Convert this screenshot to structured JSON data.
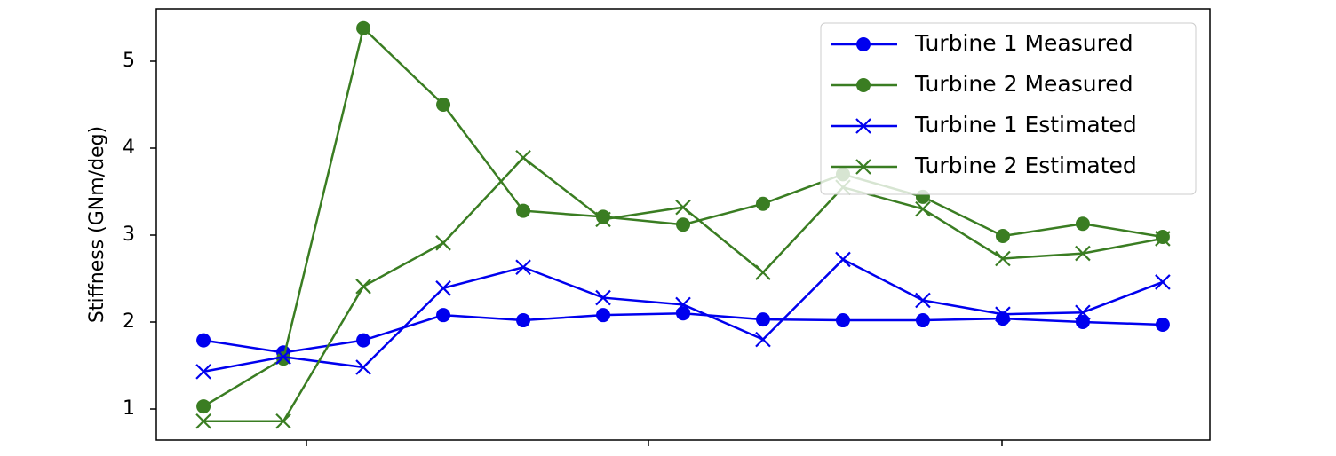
{
  "chart_data": {
    "type": "line",
    "y_label": "Stiffness (GNm/deg)",
    "categories": [
      null,
      null,
      null,
      null,
      null,
      null,
      null,
      null,
      null,
      null,
      null,
      null,
      null
    ],
    "series": [
      {
        "name": "Turbine 1 Measured",
        "color": "#0000ee",
        "marker": "o",
        "values": [
          1.79,
          1.65,
          1.79,
          2.08,
          2.02,
          2.08,
          2.1,
          2.03,
          2.02,
          2.02,
          2.04,
          2.0,
          1.97
        ]
      },
      {
        "name": "Turbine 2 Measured",
        "color": "#3a7d22",
        "marker": "o",
        "values": [
          1.03,
          1.58,
          5.38,
          4.5,
          3.28,
          3.21,
          3.12,
          3.36,
          3.7,
          3.44,
          2.99,
          3.13,
          2.98
        ]
      },
      {
        "name": "Turbine 1 Estimated",
        "color": "#0000ee",
        "marker": "x",
        "values": [
          1.43,
          1.6,
          1.48,
          2.39,
          2.63,
          2.28,
          2.2,
          1.8,
          2.72,
          2.25,
          2.09,
          2.11,
          2.46
        ]
      },
      {
        "name": "Turbine 2 Estimated",
        "color": "#3a7d22",
        "marker": "x",
        "values": [
          0.86,
          0.86,
          2.41,
          2.91,
          3.89,
          3.18,
          3.32,
          2.57,
          3.55,
          3.3,
          2.73,
          2.79,
          2.96
        ]
      }
    ],
    "ylim": [
      0.643,
      5.602
    ],
    "yticks": [
      1,
      2,
      3,
      4,
      5
    ],
    "legend": "upper right"
  }
}
